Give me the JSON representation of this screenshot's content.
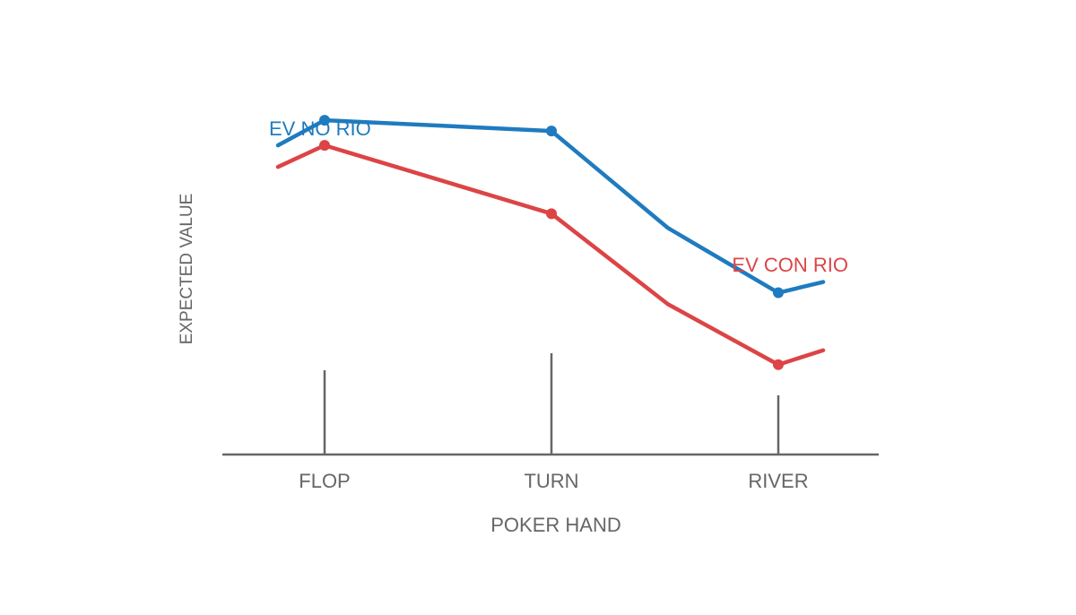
{
  "chart_data": {
    "type": "line",
    "title": "",
    "xlabel": "POKER HAND",
    "ylabel": "EXPECTED VALUE",
    "categories": [
      "FLOP",
      "TURN",
      "RIVER"
    ],
    "ylim": [
      0,
      1
    ],
    "grid": false,
    "legend": "inline labels near each line",
    "series": [
      {
        "name": "EV NO RIO",
        "color": "#1f7bbf",
        "values": [
          0.93,
          0.9,
          0.45
        ],
        "start_value": 0.86,
        "end_value": 0.48
      },
      {
        "name": "EV CON RIO",
        "color": "#dc4446",
        "values": [
          0.86,
          0.67,
          0.25
        ],
        "start_value": 0.8,
        "end_value": 0.29
      }
    ]
  }
}
